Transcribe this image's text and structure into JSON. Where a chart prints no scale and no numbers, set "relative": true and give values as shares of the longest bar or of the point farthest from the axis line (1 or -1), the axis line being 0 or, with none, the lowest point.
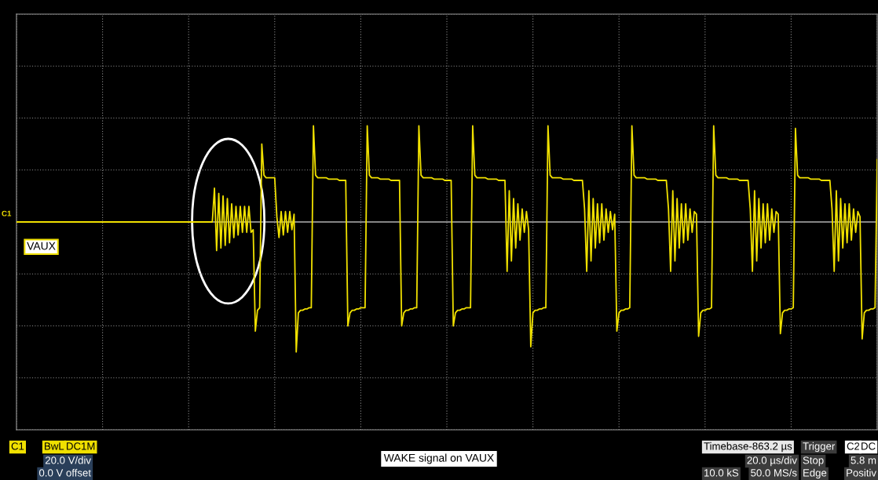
{
  "chart_data": {
    "type": "line",
    "title": "WAKE signal on VAUX",
    "relative": true,
    "grid": true,
    "legend": false,
    "marker": "none",
    "line_style": "solid",
    "annotations": [
      "C1",
      "C1",
      "BwL",
      "DC1M",
      "20.0 V/div",
      "0.0 V offset",
      "Timebase-863.2 µs",
      "20.0 µs/div",
      "10.0 kS",
      "50.0 MS/s",
      "Trigger",
      "C2",
      "DC",
      "Stop",
      "5.8 m",
      "Edge",
      "Positiv"
    ],
    "categories": [
      null,
      null,
      null,
      null,
      null,
      null,
      null,
      null,
      null,
      null,
      null,
      null,
      null,
      null,
      null,
      null,
      null,
      null,
      null,
      null,
      null,
      null,
      null,
      null,
      null,
      null,
      null,
      null,
      null,
      null,
      null,
      null,
      null,
      null,
      null,
      null,
      null,
      null,
      null,
      null,
      null,
      null,
      null,
      null,
      null,
      null,
      null,
      null,
      null,
      null,
      null,
      null,
      null,
      null,
      null,
      null,
      null,
      null,
      null,
      null,
      null,
      null,
      null,
      null,
      null,
      null,
      null,
      null,
      null,
      null,
      null,
      null,
      null,
      null,
      null,
      null,
      null,
      null,
      null,
      null,
      null,
      null,
      null,
      null,
      null,
      null,
      null,
      null,
      null,
      null,
      null,
      null,
      null,
      null,
      null,
      null,
      null,
      null,
      null,
      null,
      null,
      null,
      null,
      null,
      null,
      null,
      null,
      null,
      null,
      null,
      null,
      null,
      null,
      null,
      null,
      null,
      null,
      null,
      null,
      null,
      null,
      null,
      null,
      null,
      null,
      null,
      null,
      null,
      null,
      null,
      null,
      null,
      null,
      null,
      null,
      null,
      null,
      null,
      null,
      null,
      null,
      null,
      null,
      null,
      null,
      null,
      null,
      null,
      null,
      null,
      null,
      null,
      null,
      null,
      null,
      null,
      null,
      null,
      null,
      null,
      null,
      null,
      null,
      null,
      null,
      null,
      null,
      null,
      null,
      null,
      null,
      null,
      null,
      null,
      null,
      null,
      null,
      null,
      null,
      null,
      null,
      null,
      null,
      null,
      null,
      null,
      null,
      null,
      null,
      null,
      null,
      null,
      null,
      null,
      null,
      null,
      null,
      null,
      null,
      null,
      null,
      null,
      null,
      null,
      null,
      null,
      null,
      null,
      null,
      null,
      null,
      null,
      null,
      null,
      null,
      null,
      null,
      null,
      null,
      null,
      null,
      null,
      null,
      null,
      null,
      null,
      null,
      null,
      null,
      null,
      null,
      null,
      null,
      null,
      null,
      null,
      null,
      null,
      null,
      null,
      null,
      null,
      null,
      null,
      null,
      null,
      null,
      null,
      null,
      null,
      null,
      null,
      null,
      null,
      null,
      null,
      null,
      null,
      null,
      null,
      null,
      null,
      null,
      null,
      null,
      null,
      null,
      null,
      null,
      null,
      null,
      null,
      null,
      null,
      null,
      null,
      null,
      null,
      null,
      null,
      null,
      null,
      null,
      null,
      null,
      null,
      null,
      null,
      null,
      null,
      null,
      null,
      null,
      null,
      null,
      null,
      null,
      null,
      null,
      null,
      null,
      null,
      null,
      null,
      null,
      null,
      null,
      null,
      null,
      null,
      null,
      null,
      null,
      null,
      null,
      null,
      null,
      null,
      null,
      null,
      null,
      null,
      null,
      null,
      null,
      null,
      null,
      null,
      null,
      null,
      null,
      null,
      null,
      null,
      null,
      null,
      null,
      null,
      null,
      null,
      null,
      null,
      null,
      null,
      null,
      null,
      null,
      null,
      null,
      null,
      null,
      null,
      null,
      null,
      null,
      null,
      null,
      null,
      null,
      null,
      null,
      null,
      null,
      null,
      null,
      null,
      null,
      null,
      null,
      null,
      null,
      null,
      null,
      null,
      null,
      null,
      null,
      null,
      null,
      null,
      null,
      null,
      null,
      null,
      null,
      null,
      null,
      null,
      null,
      null,
      null,
      null,
      null,
      null,
      null,
      null,
      null,
      null,
      null,
      null,
      null
    ],
    "series": [
      {
        "name": "VAUX",
        "color": "#f0e000",
        "values": [
          0,
          0,
          0,
          0,
          0,
          0,
          0,
          0,
          0,
          0,
          0,
          0,
          0,
          0,
          0,
          0,
          0,
          0,
          0,
          0,
          0,
          0,
          0,
          0,
          0,
          0,
          0,
          0,
          0,
          0,
          0,
          0,
          0,
          0,
          0,
          0,
          0,
          0,
          0,
          0,
          0,
          0,
          0,
          0,
          0,
          0,
          0,
          0,
          0,
          0,
          0,
          0,
          0,
          0,
          0,
          0,
          0,
          0,
          0,
          0,
          0,
          0,
          0,
          0,
          0,
          0,
          0,
          0,
          0,
          0,
          0,
          0,
          0,
          0,
          0,
          0,
          0,
          0,
          0,
          0,
          0,
          0,
          0,
          0,
          0,
          0,
          0,
          0,
          0,
          0,
          0,
          0,
          0.26,
          -0.22,
          0.22,
          -0.2,
          0.2,
          -0.18,
          0.18,
          -0.16,
          0.14,
          -0.12,
          0.12,
          -0.1,
          0.12,
          -0.08,
          0.12,
          -0.08,
          0.12,
          -0.08,
          -0.06,
          -0.84,
          -0.68,
          -0.66,
          0.6,
          0.36,
          0.34,
          0.34,
          0.34,
          0.34,
          0.34,
          0.04,
          -0.12,
          0.08,
          -0.1,
          0.08,
          -0.08,
          0.08,
          -0.06,
          0.06,
          -1,
          -0.7,
          -0.68,
          -0.68,
          -0.67,
          -0.67,
          -0.66,
          -0.66,
          0.74,
          0.36,
          0.34,
          0.34,
          0.34,
          0.34,
          0.34,
          0.33,
          0.33,
          0.33,
          0.33,
          0.33,
          0.32,
          0.32,
          0.32,
          0.32,
          -0.8,
          -0.7,
          -0.68,
          -0.68,
          -0.67,
          -0.67,
          -0.66,
          -0.66,
          -0.66,
          0.74,
          0.36,
          0.34,
          0.34,
          0.34,
          0.34,
          0.33,
          0.33,
          0.33,
          0.33,
          0.33,
          0.32,
          0.32,
          0.32,
          0.32,
          0.32,
          -0.8,
          -0.7,
          -0.68,
          -0.68,
          -0.67,
          -0.67,
          -0.66,
          -0.66,
          0.74,
          0.36,
          0.34,
          0.34,
          0.34,
          0.34,
          0.34,
          0.33,
          0.33,
          0.33,
          0.33,
          0.33,
          0.32,
          0.32,
          0.32,
          0.32,
          -0.8,
          -0.7,
          -0.68,
          -0.68,
          -0.67,
          -0.67,
          -0.66,
          -0.66,
          -0.66,
          0.74,
          0.36,
          0.34,
          0.34,
          0.34,
          0.34,
          0.34,
          0.33,
          0.33,
          0.33,
          0.33,
          0.33,
          0.32,
          0.32,
          0.32,
          0.32,
          -0.38,
          0.24,
          -0.3,
          0.18,
          -0.2,
          0.14,
          -0.14,
          0.1,
          -0.08,
          0.08,
          -0.06,
          -0.96,
          -0.7,
          -0.68,
          -0.68,
          -0.67,
          -0.67,
          -0.66,
          -0.66,
          0.74,
          0.36,
          0.34,
          0.34,
          0.34,
          0.34,
          0.34,
          0.33,
          0.33,
          0.33,
          0.33,
          0.33,
          0.32,
          0.32,
          0.32,
          0.32,
          0.32,
          0.1,
          -0.38,
          0.24,
          -0.3,
          0.18,
          -0.2,
          0.14,
          -0.16,
          0.14,
          -0.14,
          0.1,
          -0.08,
          0.08,
          -0.06,
          0.06,
          -0.84,
          -0.7,
          -0.68,
          -0.68,
          -0.67,
          -0.67,
          -0.66,
          0.74,
          0.36,
          0.34,
          0.34,
          0.34,
          0.34,
          0.34,
          0.33,
          0.33,
          0.33,
          0.33,
          0.33,
          0.32,
          0.32,
          0.32,
          0.32,
          0.32,
          0.1,
          -0.38,
          0.24,
          -0.3,
          0.18,
          -0.2,
          0.14,
          -0.16,
          0.14,
          -0.14,
          0.1,
          -0.08,
          0.08,
          0.06,
          -0.88,
          -0.7,
          -0.68,
          -0.68,
          -0.67,
          -0.67,
          -0.66,
          0.74,
          0.36,
          0.34,
          0.34,
          0.34,
          0.34,
          0.34,
          0.33,
          0.33,
          0.33,
          0.33,
          0.33,
          0.32,
          0.32,
          0.32,
          0.32,
          0.32,
          0.1,
          -0.38,
          0.24,
          -0.3,
          0.18,
          -0.2,
          0.14,
          -0.16,
          0.14,
          -0.14,
          0.1,
          -0.08,
          0.08,
          0.06,
          -0.86,
          -0.7,
          -0.68,
          -0.68,
          -0.67,
          -0.67,
          -0.66,
          0.72,
          0.36,
          0.34,
          0.34,
          0.34,
          0.34,
          0.34,
          0.33,
          0.33,
          0.33,
          0.33,
          0.33,
          0.32,
          0.32,
          0.32,
          0.32,
          0.32,
          0.1,
          -0.38,
          0.24,
          -0.3,
          0.18,
          -0.2,
          0.14,
          -0.16,
          0.14,
          -0.14,
          0.1,
          -0.08,
          0.08,
          0.04,
          -0.9,
          -0.7,
          -0.68,
          -0.68,
          -0.67,
          -0.67,
          -0.66,
          0.48
        ]
      }
    ]
  }
}
